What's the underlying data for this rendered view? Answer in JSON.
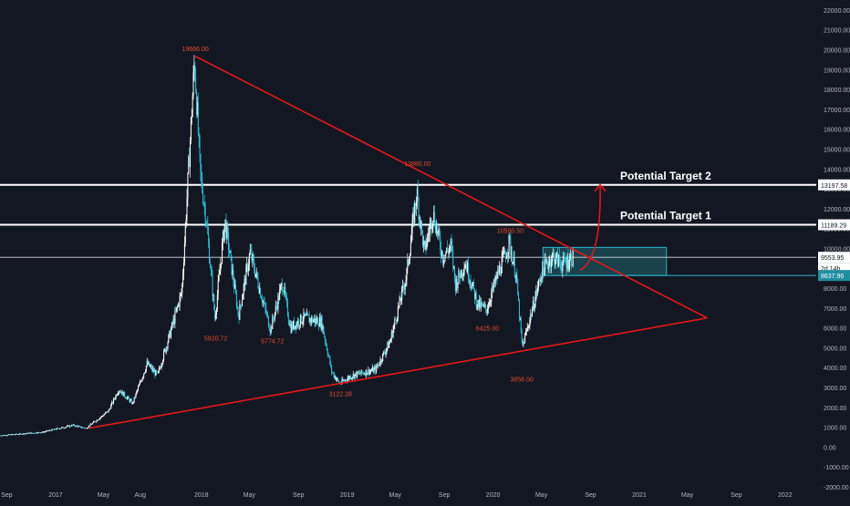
{
  "chart_data": {
    "type": "candlestick",
    "title": "",
    "xlabel": "",
    "ylabel": "",
    "ylim": [
      -2000,
      22500
    ],
    "y_ticks": [
      -2000,
      -1000,
      0,
      1000,
      2000,
      3000,
      4000,
      5000,
      6000,
      7000,
      8000,
      9000,
      10000,
      11000,
      12000,
      13000,
      14000,
      15000,
      16000,
      17000,
      18000,
      19000,
      20000,
      21000,
      22000
    ],
    "y_tick_labels": [
      "-2000.00",
      "-1000.00",
      "0.00",
      "1000.00",
      "2000.00",
      "3000.00",
      "4000.00",
      "5000.00",
      "6000.00",
      "7000.00",
      "8000.00",
      "9000.00",
      "10000.00",
      "11000.00",
      "12000.00",
      "13000.00",
      "14000.00",
      "15000.00",
      "16000.00",
      "17000.00",
      "18000.00",
      "19000.00",
      "20000.00",
      "21000.00",
      "22000.00"
    ],
    "x_range": [
      "2016-08-15",
      "2022-03-20"
    ],
    "x_ticks": [
      {
        "date": "2016-09-01",
        "label": "Sep"
      },
      {
        "date": "2017-01-01",
        "label": "2017"
      },
      {
        "date": "2017-05-01",
        "label": "May"
      },
      {
        "date": "2017-08-01",
        "label": "Aug"
      },
      {
        "date": "2018-01-01",
        "label": "2018"
      },
      {
        "date": "2018-05-01",
        "label": "May"
      },
      {
        "date": "2018-09-01",
        "label": "Sep"
      },
      {
        "date": "2019-01-01",
        "label": "2019"
      },
      {
        "date": "2019-05-01",
        "label": "May"
      },
      {
        "date": "2019-09-01",
        "label": "Sep"
      },
      {
        "date": "2020-01-01",
        "label": "2020"
      },
      {
        "date": "2020-05-01",
        "label": "May"
      },
      {
        "date": "2020-09-01",
        "label": "Sep"
      },
      {
        "date": "2021-01-01",
        "label": "2021"
      },
      {
        "date": "2021-05-01",
        "label": "May"
      },
      {
        "date": "2021-09-01",
        "label": "Sep"
      },
      {
        "date": "2022-01-01",
        "label": "2022"
      }
    ],
    "price_anchors": [
      {
        "date": "2016-08-15",
        "price": 580
      },
      {
        "date": "2016-12-01",
        "price": 750
      },
      {
        "date": "2017-02-15",
        "price": 1100
      },
      {
        "date": "2017-03-20",
        "price": 950
      },
      {
        "date": "2017-05-15",
        "price": 1800
      },
      {
        "date": "2017-06-10",
        "price": 2900
      },
      {
        "date": "2017-07-15",
        "price": 2200
      },
      {
        "date": "2017-08-20",
        "price": 4200
      },
      {
        "date": "2017-09-15",
        "price": 3600
      },
      {
        "date": "2017-10-15",
        "price": 5600
      },
      {
        "date": "2017-11-15",
        "price": 7800
      },
      {
        "date": "2017-12-17",
        "price": 19500
      },
      {
        "date": "2017-12-31",
        "price": 13800
      },
      {
        "date": "2018-01-15",
        "price": 11500
      },
      {
        "date": "2018-02-06",
        "price": 6500
      },
      {
        "date": "2018-03-03",
        "price": 11400
      },
      {
        "date": "2018-04-06",
        "price": 6600
      },
      {
        "date": "2018-05-05",
        "price": 9800
      },
      {
        "date": "2018-06-25",
        "price": 5900
      },
      {
        "date": "2018-07-25",
        "price": 8300
      },
      {
        "date": "2018-08-14",
        "price": 6000
      },
      {
        "date": "2018-09-15",
        "price": 6500
      },
      {
        "date": "2018-10-31",
        "price": 6300
      },
      {
        "date": "2018-11-25",
        "price": 3800
      },
      {
        "date": "2018-12-15",
        "price": 3200
      },
      {
        "date": "2019-01-15",
        "price": 3600
      },
      {
        "date": "2019-03-15",
        "price": 3900
      },
      {
        "date": "2019-04-20",
        "price": 5300
      },
      {
        "date": "2019-05-31",
        "price": 8600
      },
      {
        "date": "2019-06-26",
        "price": 12800
      },
      {
        "date": "2019-07-15",
        "price": 9800
      },
      {
        "date": "2019-08-06",
        "price": 11800
      },
      {
        "date": "2019-08-30",
        "price": 9600
      },
      {
        "date": "2019-09-20",
        "price": 10100
      },
      {
        "date": "2019-10-01",
        "price": 8200
      },
      {
        "date": "2019-10-26",
        "price": 9300
      },
      {
        "date": "2019-11-25",
        "price": 7200
      },
      {
        "date": "2019-12-17",
        "price": 6900
      },
      {
        "date": "2020-01-15",
        "price": 8700
      },
      {
        "date": "2020-02-13",
        "price": 10300
      },
      {
        "date": "2020-03-01",
        "price": 8600
      },
      {
        "date": "2020-03-16",
        "price": 5000
      },
      {
        "date": "2020-04-10",
        "price": 6900
      },
      {
        "date": "2020-05-05",
        "price": 8900
      },
      {
        "date": "2020-06-01",
        "price": 9600
      },
      {
        "date": "2020-06-25",
        "price": 9200
      },
      {
        "date": "2020-07-20",
        "price": 9550
      }
    ],
    "y_annotations": [
      {
        "text": "19666.00",
        "date": "2017-12-17",
        "value": 19666
      },
      {
        "text": "5920.72",
        "date": "2018-02-06",
        "value": 5920.72
      },
      {
        "text": "5774.72",
        "date": "2018-06-28",
        "value": 5774.72
      },
      {
        "text": "3122.28",
        "date": "2018-12-15",
        "value": 3122.28
      },
      {
        "text": "13880.00",
        "date": "2019-06-26",
        "value": 13880
      },
      {
        "text": "6425.00",
        "date": "2019-12-18",
        "value": 6425
      },
      {
        "text": "10500.50",
        "date": "2020-02-13",
        "value": 10500.5
      },
      {
        "text": "3858.00",
        "date": "2020-03-13",
        "value": 3858
      }
    ],
    "target_lines": [
      {
        "value": 13197.58,
        "price_label": "13197.58",
        "text": "Potential Target 2"
      },
      {
        "value": 11189.29,
        "price_label": "11189.29",
        "text": "Potential Target 1"
      }
    ],
    "current_price": {
      "value": 9553.95,
      "label": "9553.95",
      "countdown": "2d 14h"
    },
    "zone": {
      "top": 10050,
      "bottom": 8637.96,
      "label": "8637.96",
      "from": "2020-05-05",
      "to": "2021-03-10"
    },
    "triangle": {
      "upper": [
        {
          "date": "2017-12-17",
          "value": 19666
        },
        {
          "date": "2021-06-20",
          "value": 6500
        }
      ],
      "lower": [
        {
          "date": "2017-03-25",
          "value": 950
        },
        {
          "date": "2021-06-20",
          "value": 6500
        }
      ]
    },
    "projection": [
      {
        "date": "2020-08-05",
        "value": 8900
      },
      {
        "date": "2020-09-01",
        "value": 9400
      },
      {
        "date": "2020-09-25",
        "value": 13200
      }
    ],
    "colors": {
      "background": "#131722",
      "up": "#ffffff",
      "down": "#26c6da",
      "triangle": "#e5161b",
      "price_label": "#e04b2c",
      "target_line": "#ffffff",
      "zone_fill": "#1f6670",
      "zone_border": "#28b4c8",
      "axis_text": "#b2b5be"
    }
  }
}
